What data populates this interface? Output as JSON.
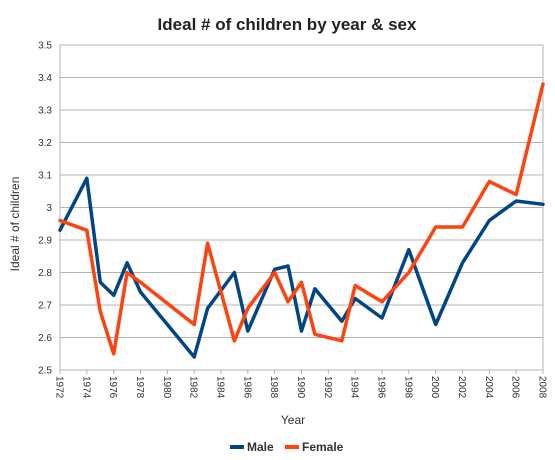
{
  "chart_data": {
    "type": "line",
    "title": "Ideal # of children by year & sex",
    "xlabel": "Year",
    "ylabel": "Ideal # of children",
    "xlim": [
      1972,
      2008
    ],
    "ylim": [
      2.5,
      3.5
    ],
    "x_ticks": [
      "1972",
      "1974",
      "1976",
      "1978",
      "1980",
      "1982",
      "1984",
      "1986",
      "1988",
      "1990",
      "1992",
      "1994",
      "1996",
      "1998",
      "2000",
      "2002",
      "2004",
      "2006",
      "2008"
    ],
    "y_ticks": [
      "2.5",
      "2.6",
      "2.7",
      "2.8",
      "2.9",
      "3",
      "3.1",
      "3.2",
      "3.3",
      "3.4",
      "3.5"
    ],
    "grid": "horizontal",
    "legend_position": "bottom",
    "series": [
      {
        "name": "Male",
        "color": "#004586",
        "x": [
          1972,
          1974,
          1975,
          1976,
          1977,
          1978,
          1982,
          1983,
          1985,
          1986,
          1988,
          1989,
          1990,
          1991,
          1993,
          1994,
          1996,
          1998,
          2000,
          2002,
          2004,
          2006,
          2008
        ],
        "y": [
          2.93,
          3.09,
          2.77,
          2.73,
          2.83,
          2.74,
          2.54,
          2.69,
          2.8,
          2.62,
          2.81,
          2.82,
          2.62,
          2.75,
          2.65,
          2.72,
          2.66,
          2.87,
          2.64,
          2.83,
          2.96,
          3.02,
          3.01
        ]
      },
      {
        "name": "Female",
        "color": "#ff420e",
        "x": [
          1972,
          1974,
          1975,
          1976,
          1977,
          1978,
          1982,
          1983,
          1985,
          1986,
          1988,
          1989,
          1990,
          1991,
          1993,
          1994,
          1996,
          1998,
          2000,
          2002,
          2004,
          2006,
          2008
        ],
        "y": [
          2.96,
          2.93,
          2.68,
          2.55,
          2.8,
          2.77,
          2.64,
          2.89,
          2.59,
          2.69,
          2.8,
          2.71,
          2.77,
          2.61,
          2.59,
          2.76,
          2.71,
          2.8,
          2.94,
          2.94,
          3.08,
          3.04,
          3.38
        ]
      }
    ]
  }
}
